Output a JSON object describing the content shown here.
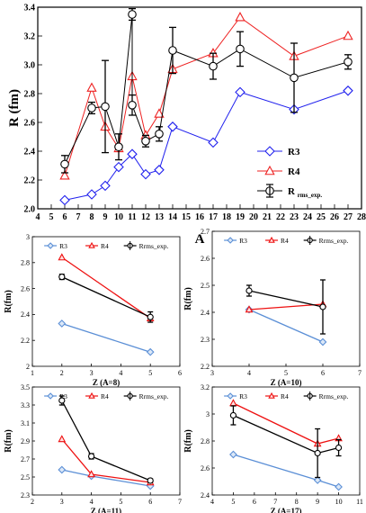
{
  "chart_data": [
    {
      "type": "line",
      "xlabel": "A",
      "ylabel": "R (fm)",
      "xlim": [
        4,
        28
      ],
      "ylim": [
        2.0,
        3.4
      ],
      "xticks": [
        4,
        5,
        6,
        7,
        8,
        9,
        10,
        11,
        12,
        13,
        14,
        15,
        16,
        17,
        18,
        19,
        20,
        21,
        22,
        23,
        24,
        25,
        26,
        27,
        28
      ],
      "yticks": [
        2.0,
        2.2,
        2.4,
        2.6,
        2.8,
        3.0,
        3.2,
        3.4
      ],
      "legend_position": "right",
      "series": [
        {
          "name": "R3",
          "color": "#2222ee",
          "marker": "diamond",
          "x": [
            6,
            8,
            9,
            10,
            11,
            12,
            13,
            14,
            17,
            19,
            23,
            27
          ],
          "y": [
            2.06,
            2.1,
            2.16,
            2.29,
            2.38,
            2.24,
            2.27,
            2.57,
            2.46,
            2.81,
            2.69,
            2.82
          ]
        },
        {
          "name": "R4",
          "color": "#ee2222",
          "marker": "triangle",
          "x": [
            6,
            8,
            9,
            10,
            11,
            12,
            13,
            14,
            17,
            19,
            23,
            27
          ],
          "y": [
            2.23,
            2.84,
            2.57,
            2.42,
            2.92,
            2.51,
            2.66,
            2.97,
            3.08,
            3.33,
            3.06,
            3.2
          ]
        },
        {
          "name": "R rms_exp.",
          "name_main": "R",
          "name_sub": "rms_exp.",
          "color": "#000000",
          "marker": "circle",
          "x": [
            6,
            8,
            9,
            10,
            11,
            11,
            12,
            13,
            14,
            17,
            19,
            23,
            27
          ],
          "y": [
            2.31,
            2.7,
            2.71,
            2.43,
            3.35,
            2.72,
            2.47,
            2.52,
            3.1,
            2.99,
            3.11,
            2.91,
            3.02
          ],
          "err": [
            0.06,
            0.04,
            0.32,
            0.09,
            0.04,
            0.07,
            0.04,
            0.05,
            0.16,
            0.09,
            0.12,
            0.24,
            0.05
          ]
        }
      ]
    },
    {
      "type": "line",
      "xlabel": "Z (A=8)",
      "ylabel": "R(fm)",
      "xlim": [
        1,
        6
      ],
      "ylim": [
        2.0,
        3.0
      ],
      "xticks": [
        1,
        2,
        3,
        4,
        5,
        6
      ],
      "yticks": [
        2.0,
        2.2,
        2.4,
        2.6,
        2.8,
        3.0
      ],
      "legend_position": "top",
      "series": [
        {
          "name": "R3",
          "color": "#5b8fd6",
          "marker": "diamond",
          "x": [
            2,
            5
          ],
          "y": [
            2.33,
            2.11
          ]
        },
        {
          "name": "R4",
          "color": "#ee1111",
          "marker": "triangle",
          "x": [
            2,
            5
          ],
          "y": [
            2.84,
            2.37
          ]
        },
        {
          "name": "Rrms_exp.",
          "color": "#000000",
          "marker": "circle",
          "x": [
            2,
            5
          ],
          "y": [
            2.69,
            2.38
          ],
          "err": [
            0.02,
            0.04
          ]
        }
      ]
    },
    {
      "type": "line",
      "xlabel": "Z (A=10)",
      "ylabel": "R(fm)",
      "xlim": [
        3,
        7
      ],
      "ylim": [
        2.2,
        2.7
      ],
      "xticks": [
        3,
        4,
        5,
        6,
        7
      ],
      "yticks": [
        2.2,
        2.3,
        2.4,
        2.5,
        2.6,
        2.7
      ],
      "legend_position": "top",
      "series": [
        {
          "name": "R3",
          "color": "#5b8fd6",
          "marker": "diamond",
          "x": [
            4,
            6
          ],
          "y": [
            2.41,
            2.29
          ]
        },
        {
          "name": "R4",
          "color": "#ee1111",
          "marker": "triangle",
          "x": [
            4,
            6
          ],
          "y": [
            2.41,
            2.43
          ]
        },
        {
          "name": "Rrms_exp.",
          "color": "#000000",
          "marker": "circle",
          "x": [
            4,
            6
          ],
          "y": [
            2.48,
            2.42
          ],
          "err": [
            0.02,
            0.1
          ]
        }
      ]
    },
    {
      "type": "line",
      "xlabel": "Z (A=11)",
      "ylabel": "R(fm)",
      "xlim": [
        2,
        7
      ],
      "ylim": [
        2.3,
        3.5
      ],
      "xticks": [
        2,
        3,
        4,
        5,
        6,
        7
      ],
      "yticks": [
        2.3,
        2.5,
        2.7,
        2.9,
        3.1,
        3.3,
        3.5
      ],
      "legend_position": "top",
      "series": [
        {
          "name": "R3",
          "color": "#5b8fd6",
          "marker": "diamond",
          "x": [
            3,
            4,
            6
          ],
          "y": [
            2.58,
            2.51,
            2.4
          ]
        },
        {
          "name": "R4",
          "color": "#ee1111",
          "marker": "triangle",
          "x": [
            3,
            4,
            6
          ],
          "y": [
            2.92,
            2.53,
            2.44
          ]
        },
        {
          "name": "Rrms_exp.",
          "color": "#000000",
          "marker": "circle",
          "x": [
            3,
            4,
            6
          ],
          "y": [
            3.35,
            2.73,
            2.46
          ],
          "err": [
            0.05,
            0.03,
            0.02
          ]
        }
      ]
    },
    {
      "type": "line",
      "xlabel": "Z (A=17)",
      "ylabel": "R(fm)",
      "xlim": [
        4,
        11
      ],
      "ylim": [
        2.4,
        3.2
      ],
      "xticks": [
        4,
        5,
        6,
        7,
        8,
        9,
        10,
        11
      ],
      "yticks": [
        2.4,
        2.6,
        2.8,
        3.0,
        3.2
      ],
      "legend_position": "top",
      "series": [
        {
          "name": "R3",
          "color": "#5b8fd6",
          "marker": "diamond",
          "x": [
            5,
            9,
            10
          ],
          "y": [
            2.7,
            2.51,
            2.46
          ]
        },
        {
          "name": "R4",
          "color": "#ee1111",
          "marker": "triangle",
          "x": [
            5,
            9,
            10
          ],
          "y": [
            3.08,
            2.78,
            2.82
          ]
        },
        {
          "name": "Rrms_exp.",
          "color": "#000000",
          "marker": "circle",
          "x": [
            5,
            9,
            10
          ],
          "y": [
            2.99,
            2.71,
            2.75
          ],
          "err": [
            0.07,
            0.18,
            0.06
          ]
        }
      ]
    }
  ]
}
